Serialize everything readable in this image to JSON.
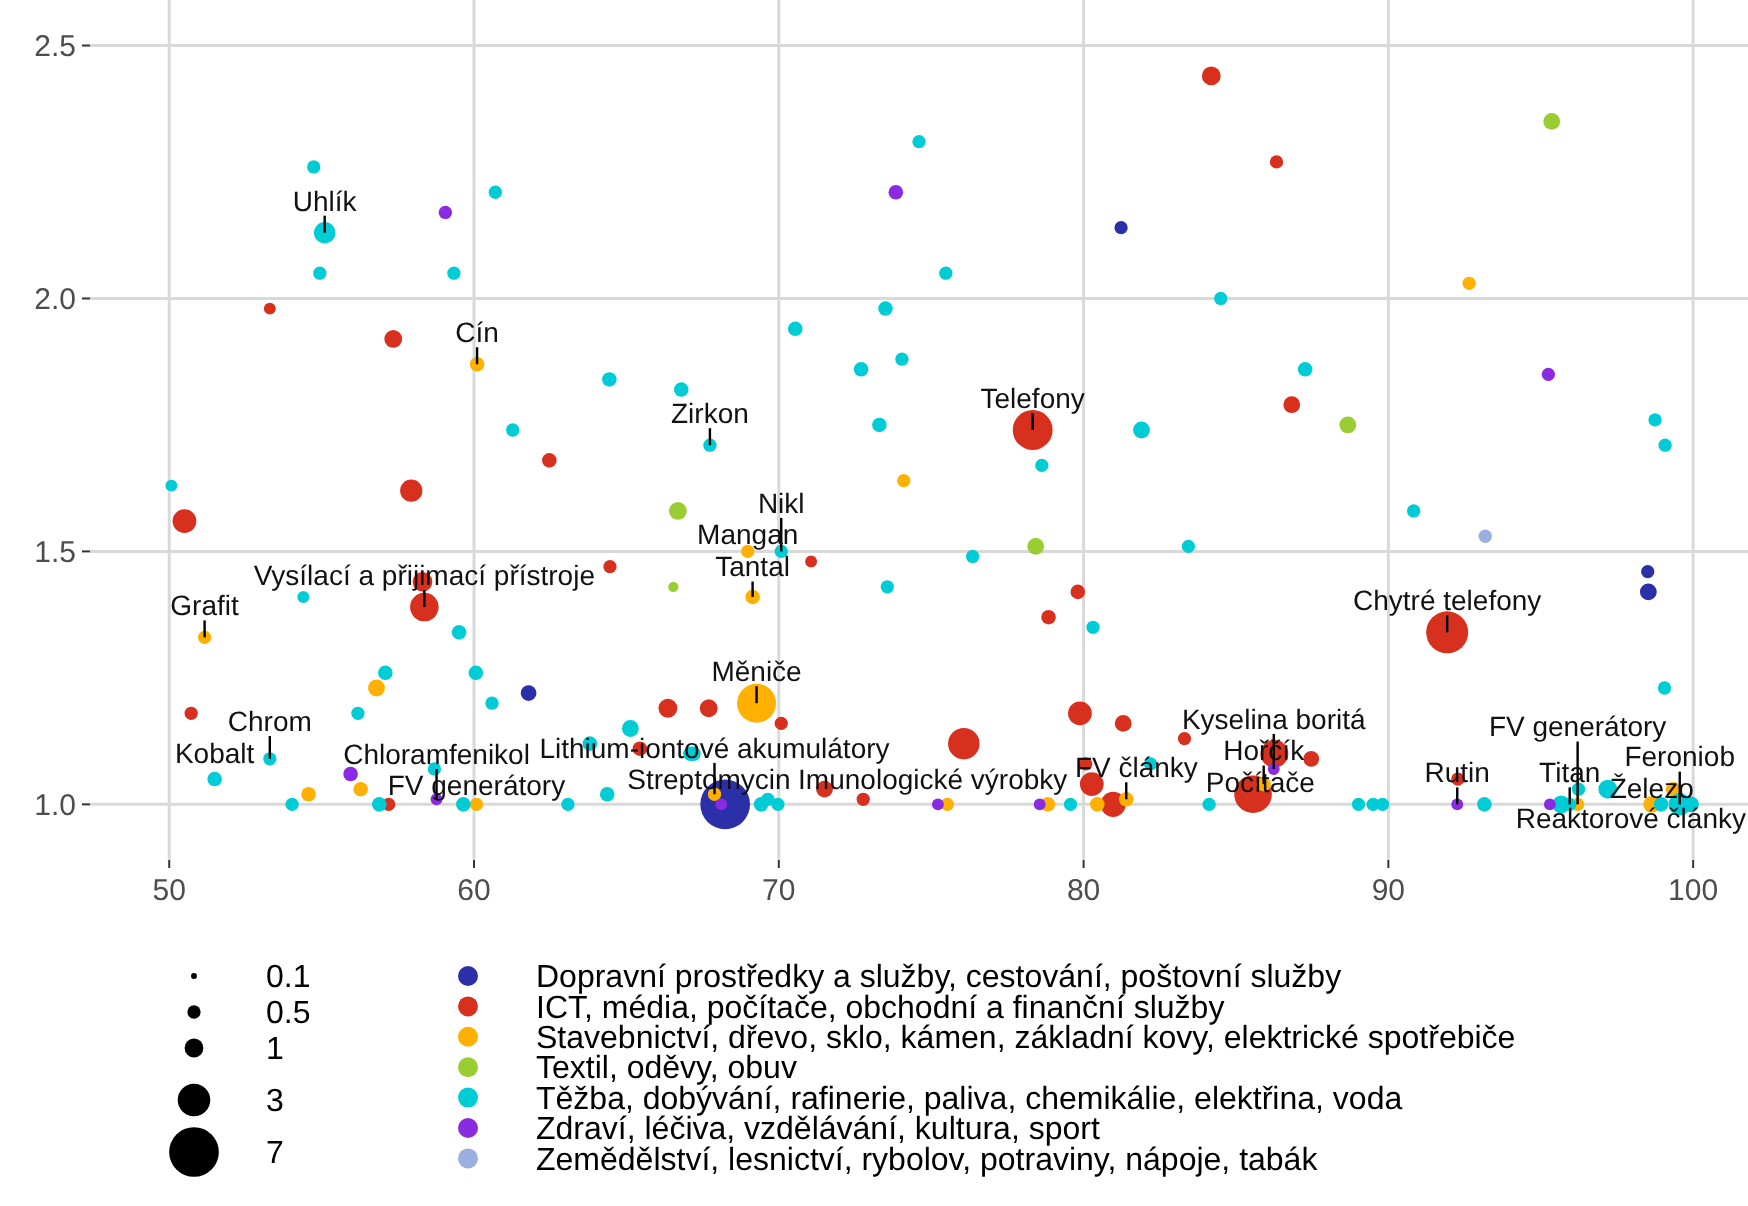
{
  "chart_data": {
    "type": "bubble",
    "xlim": [
      47.4,
      101.8
    ],
    "ylim": [
      0.89,
      2.59
    ],
    "xticks": [
      50,
      60,
      70,
      80,
      90,
      100
    ],
    "yticks": [
      {
        "value": 1,
        "label": "1.0"
      },
      1.5,
      {
        "value": 2,
        "label": "2.0"
      },
      2.5
    ],
    "grid": true,
    "legend": "bottom",
    "size_legend": [
      0.1,
      0.5,
      1,
      3,
      7
    ],
    "series": [
      {
        "name": "Dopravní prostředky a služby, cestování, poštovní služby",
        "color": "#2b2fa8",
        "x": [
          81.23,
          61.79,
          98.51,
          98.53,
          68.24
        ],
        "values": [
          2.14,
          1.22,
          1.46,
          1.42,
          1.0
        ],
        "sizes": [
          0.5,
          0.7,
          0.5,
          0.8,
          7
        ]
      },
      {
        "name": "ICT, média, počítače, obchodní a finanční služby",
        "color": "#d7301f",
        "x": [
          84.19,
          86.33,
          53.3,
          57.35,
          86.83,
          78.33,
          62.47,
          57.94,
          50.5,
          71.06,
          64.46,
          58.31,
          58.37,
          79.81,
          78.85,
          91.93,
          66.36,
          67.7,
          70.08,
          65.44,
          50.72,
          57.2,
          71.5,
          72.77,
          79.88,
          81.3,
          76.07,
          83.31,
          80.07,
          80.27,
          80.97,
          85.56,
          86.26,
          87.47,
          92.28
        ],
        "values": [
          2.44,
          2.27,
          1.98,
          1.92,
          1.79,
          1.74,
          1.68,
          1.62,
          1.56,
          1.48,
          1.47,
          1.44,
          1.39,
          1.42,
          1.37,
          1.34,
          1.19,
          1.19,
          1.16,
          1.11,
          1.18,
          1.0,
          1.03,
          1.01,
          1.18,
          1.16,
          1.12,
          1.13,
          1.08,
          1.04,
          1.0,
          1.02,
          1.1,
          1.09,
          1.05
        ],
        "sizes": [
          1,
          0.5,
          0.4,
          0.9,
          0.8,
          4.5,
          0.6,
          1.4,
          1.6,
          0.4,
          0.5,
          1.1,
          2.3,
          0.6,
          0.6,
          5,
          1,
          0.9,
          0.5,
          0.6,
          0.5,
          0.5,
          0.8,
          0.5,
          1.6,
          0.8,
          2.8,
          0.5,
          0.5,
          1.6,
          1.8,
          4,
          2.2,
          0.7,
          0.5
        ]
      },
      {
        "name": "Stavebnictví, dřevo, sklo, kámen, základní kovy, elektrické spotřebiče",
        "color": "#ffb000",
        "x": [
          60.1,
          92.65,
          74.1,
          68.98,
          69.14,
          51.16,
          56.8,
          69.27,
          56.28,
          54.57,
          60.08,
          67.89,
          81.4,
          80.45,
          78.83,
          75.53,
          85.91,
          96.21,
          98.64,
          99.34
        ],
        "values": [
          1.87,
          2.03,
          1.64,
          1.5,
          1.41,
          1.33,
          1.23,
          1.2,
          1.03,
          1.02,
          1.0,
          1.02,
          1.01,
          1.0,
          1.0,
          1.0,
          1.04,
          1.0,
          1.0,
          1.03
        ],
        "sizes": [
          0.6,
          0.5,
          0.5,
          0.5,
          0.6,
          0.5,
          0.8,
          4.3,
          0.6,
          0.6,
          0.5,
          0.5,
          0.6,
          0.6,
          0.6,
          0.5,
          0.6,
          0.5,
          0.8,
          0.6
        ]
      },
      {
        "name": "Textil, oděvy, obuv",
        "color": "#9acd32",
        "x": [
          95.36,
          88.67,
          66.69,
          78.43,
          66.54
        ],
        "values": [
          2.35,
          1.75,
          1.58,
          1.51,
          1.43
        ],
        "sizes": [
          0.8,
          0.8,
          0.9,
          0.8,
          0.3
        ]
      },
      {
        "name": "Těžba, dobývání, rafinerie, paliva, chemikálie, elektřina, voda",
        "color": "#00ccd6",
        "x": [
          54.74,
          55.1,
          54.94,
          60.7,
          59.34,
          64.44,
          66.8,
          61.27,
          70.54,
          73.5,
          72.7,
          74.04,
          73.3,
          74.6,
          75.48,
          84.5,
          98.75,
          87.27,
          81.9,
          67.74,
          99.08,
          78.63,
          90.83,
          76.36,
          83.44,
          73.56,
          80.31,
          99.06,
          82.2,
          79.57,
          84.12,
          89.02,
          89.5,
          89.81,
          93.15,
          95.67,
          95.95,
          96.24,
          97.2,
          98.95,
          99.56,
          99.93,
          50.07,
          70.08,
          54.4,
          59.51,
          57.09,
          60.06,
          60.59,
          65.13,
          63.8,
          67.1,
          67.2,
          51.49,
          53.3,
          56.19,
          54.03,
          56.89,
          58.7,
          59.65,
          63.08,
          64.37,
          69.42,
          69.64,
          69.97
        ],
        "values": [
          2.26,
          2.13,
          2.05,
          2.21,
          2.05,
          1.84,
          1.82,
          1.74,
          1.94,
          1.98,
          1.86,
          1.88,
          1.75,
          2.31,
          2.05,
          2.0,
          1.76,
          1.86,
          1.74,
          1.71,
          1.71,
          1.67,
          1.58,
          1.49,
          1.51,
          1.43,
          1.35,
          1.23,
          1.08,
          1.0,
          1.0,
          1.0,
          1.0,
          1.0,
          1.0,
          1.0,
          1.0,
          1.03,
          1.03,
          1.0,
          1.0,
          1.0,
          1.63,
          1.5,
          1.41,
          1.34,
          1.26,
          1.26,
          1.2,
          1.15,
          1.12,
          1.1,
          1.1,
          1.05,
          1.09,
          1.18,
          1.0,
          1.0,
          1.07,
          1.0,
          1.0,
          1.02,
          1.0,
          1.01,
          1.0
        ],
        "sizes": [
          0.5,
          1.3,
          0.5,
          0.5,
          0.5,
          0.6,
          0.6,
          0.5,
          0.6,
          0.6,
          0.6,
          0.5,
          0.6,
          0.5,
          0.5,
          0.5,
          0.5,
          0.6,
          0.8,
          0.5,
          0.5,
          0.5,
          0.5,
          0.5,
          0.5,
          0.5,
          0.5,
          0.5,
          0.5,
          0.5,
          0.5,
          0.5,
          0.5,
          0.5,
          0.6,
          0.9,
          0.5,
          0.5,
          1,
          0.6,
          1.4,
          0.7,
          0.4,
          0.5,
          0.4,
          0.6,
          0.6,
          0.6,
          0.5,
          0.8,
          0.6,
          0.6,
          0.6,
          0.6,
          0.5,
          0.5,
          0.5,
          0.6,
          0.5,
          0.6,
          0.5,
          0.6,
          0.6,
          0.5,
          0.5
        ]
      },
      {
        "name": "Zdraví, léčiva, vzdělávání, kultura, sport",
        "color": "#8a2be2",
        "x": [
          59.06,
          73.84,
          95.25,
          55.95,
          58.77,
          68.11,
          78.56,
          75.22,
          86.24,
          92.26,
          95.3
        ],
        "values": [
          2.17,
          2.21,
          1.85,
          1.06,
          1.01,
          1.0,
          1.0,
          1.0,
          1.07,
          1.0,
          1.0
        ],
        "sizes": [
          0.5,
          0.6,
          0.5,
          0.6,
          0.4,
          0.4,
          0.4,
          0.4,
          0.4,
          0.4,
          0.4
        ]
      },
      {
        "name": "Zemědělství, lesnictví, rybolov, potraviny, nápoje, tabák",
        "color": "#9aaedf",
        "x": [
          93.18
        ],
        "values": [
          1.53
        ],
        "sizes": [
          0.5
        ]
      }
    ],
    "annotations": [
      {
        "text": "Uhlík",
        "x": 55.1,
        "y": 2.13
      },
      {
        "text": "Cín",
        "x": 60.1,
        "y": 1.87
      },
      {
        "text": "Zirkon",
        "x": 67.74,
        "y": 1.71
      },
      {
        "text": "Telefony",
        "x": 78.33,
        "y": 1.74
      },
      {
        "text": "Nikl",
        "x": 70.08,
        "y": 1.5
      },
      {
        "text": "Mangan",
        "x": 68.98,
        "y": 1.5
      },
      {
        "text": "Tantal",
        "x": 69.14,
        "y": 1.41
      },
      {
        "text": "Vysílací a přijimací přístroje",
        "x": 58.37,
        "y": 1.39
      },
      {
        "text": "Grafit",
        "x": 51.16,
        "y": 1.33
      },
      {
        "text": "Měniče",
        "x": 69.27,
        "y": 1.2
      },
      {
        "text": "Kobalt",
        "x": 51.49,
        "y": 1.05
      },
      {
        "text": "Chloramfenikol",
        "x": 58.77,
        "y": 1.01
      },
      {
        "text": "Chrom",
        "x": 53.3,
        "y": 1.09
      },
      {
        "text": "FV generátory",
        "x": 60.08,
        "y": 1.0
      },
      {
        "text": "Streptomycin",
        "x": 68.11,
        "y": 1.0
      },
      {
        "text": "Lithium-iontové akumulátory",
        "x": 67.89,
        "y": 1.02
      },
      {
        "text": "Imunologické výrobky",
        "x": 75.22,
        "y": 1.0
      },
      {
        "text": "Chytré telefony",
        "x": 91.93,
        "y": 1.34
      },
      {
        "text": "Počítače",
        "x": 85.56,
        "y": 1.02
      },
      {
        "text": "Hořčík",
        "x": 85.91,
        "y": 1.04
      },
      {
        "text": "FV články",
        "x": 81.4,
        "y": 1.01
      },
      {
        "text": "Kyselina boritá",
        "x": 86.24,
        "y": 1.07
      },
      {
        "text": "FV generátory",
        "x": 96.21,
        "y": 1.0
      },
      {
        "text": "Reaktorové články",
        "x": 99.93,
        "y": 1.0
      },
      {
        "text": "Feroniob",
        "x": 99.56,
        "y": 1.0
      },
      {
        "text": "Titan",
        "x": 95.95,
        "y": 1.0
      },
      {
        "text": "Železo",
        "x": 98.64,
        "y": 1.0
      },
      {
        "text": "Rutin",
        "x": 92.26,
        "y": 1.0
      }
    ]
  }
}
